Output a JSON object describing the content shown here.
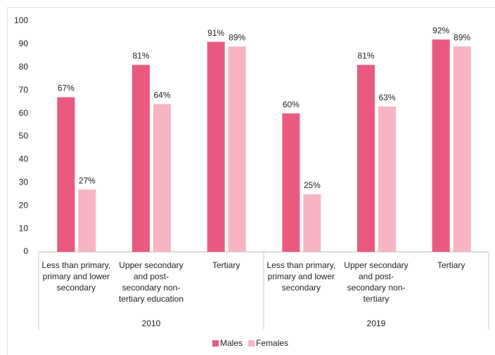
{
  "chart_data": {
    "type": "bar",
    "categories": [
      "Less than primary, primary and lower secondary",
      "Upper secondary and post-secondary non-tertiary education",
      "Tertiary",
      "Less than primary, primary and lower secondary",
      "Upper secondary and post-secondary non-tertiary",
      "Tertiary"
    ],
    "category_groups": [
      "2010",
      "2019"
    ],
    "series": [
      {
        "name": "Males",
        "color": "#ea5a80",
        "values": [
          67,
          81,
          91,
          60,
          81,
          92
        ],
        "value_labels": [
          "67%",
          "81%",
          "91%",
          "60%",
          "81%",
          "92%"
        ]
      },
      {
        "name": "Females",
        "color": "#f7b5c3",
        "values": [
          27,
          64,
          89,
          25,
          63,
          89
        ],
        "value_labels": [
          "27%",
          "64%",
          "89%",
          "25%",
          "63%",
          "89%"
        ]
      }
    ],
    "ylim": [
      0,
      100
    ],
    "yticks": [
      0,
      10,
      20,
      30,
      40,
      50,
      60,
      70,
      80,
      90,
      100
    ],
    "grid": false,
    "legend": "bottom"
  }
}
